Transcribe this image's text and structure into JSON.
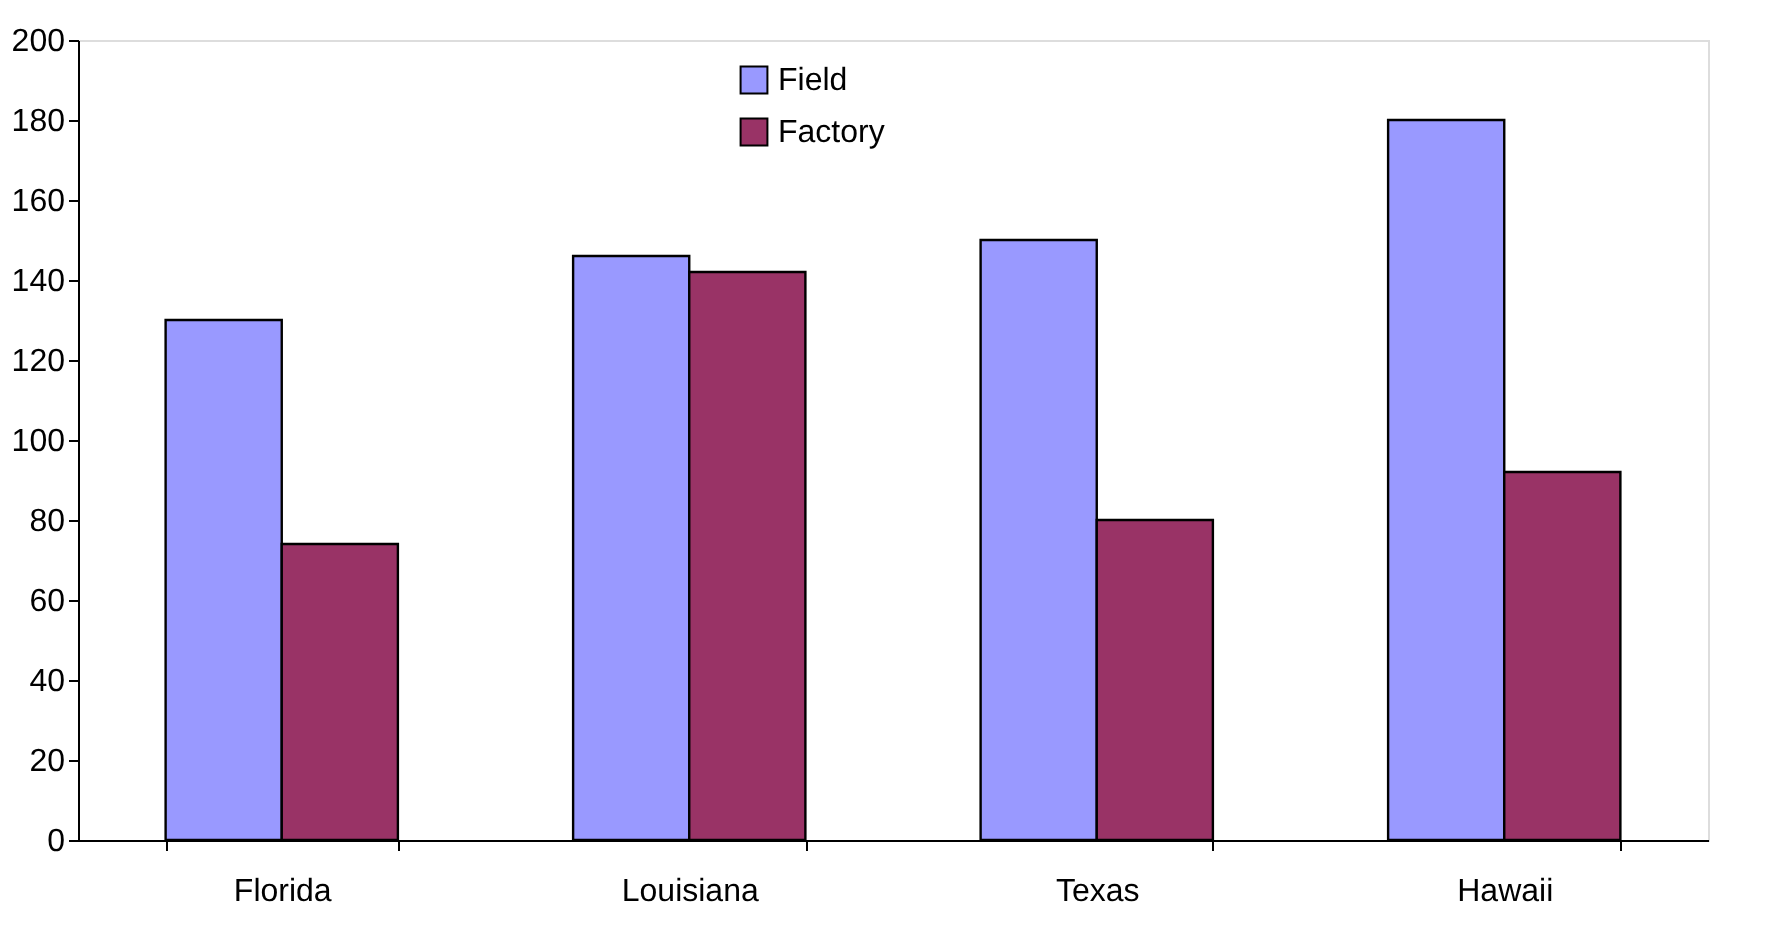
{
  "chart_data": {
    "type": "bar",
    "categories": [
      "Florida",
      "Louisiana",
      "Texas",
      "Hawaii"
    ],
    "series": [
      {
        "name": "Field",
        "color": "#9999ff",
        "values": [
          130,
          146,
          150,
          180
        ]
      },
      {
        "name": "Factory",
        "color": "#993366",
        "values": [
          74,
          142,
          80,
          92
        ]
      }
    ],
    "ylim": [
      0,
      200
    ],
    "yticks": [
      0,
      20,
      40,
      60,
      80,
      100,
      120,
      140,
      160,
      180,
      200
    ],
    "grid": false,
    "legend": "top"
  }
}
